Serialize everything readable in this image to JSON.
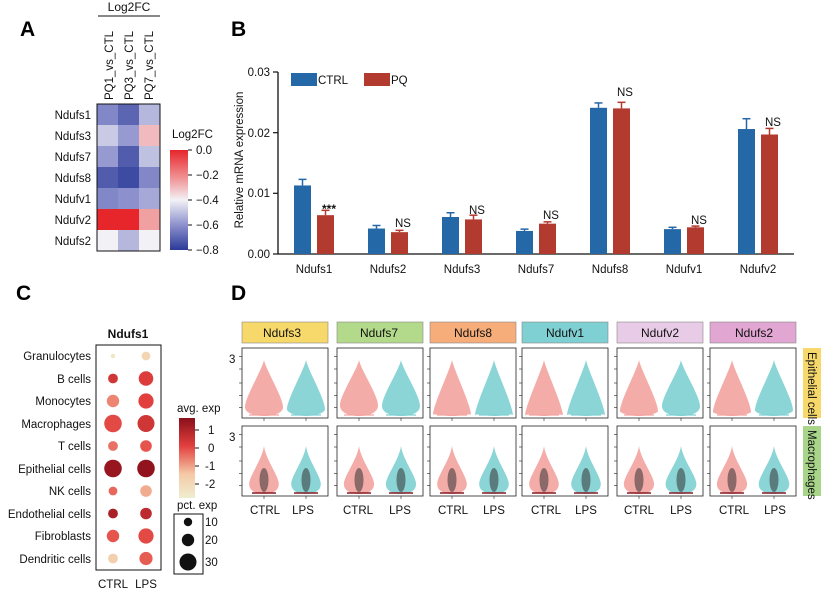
{
  "panels": {
    "a": "A",
    "b": "B",
    "c": "C",
    "d": "D"
  },
  "colors": {
    "ctrl": "#2468a8",
    "pq": "#b23a2e",
    "violin_ctrl": "#f3a3a0",
    "violin_lps": "#7fd0d3"
  },
  "chart_data": [
    {
      "id": "A",
      "type": "heatmap",
      "header": "Log2FC",
      "columns": [
        "PQ1_vs_CTL",
        "PQ3_vs_CTL",
        "PQ7_vs_CTL"
      ],
      "rows": [
        "Ndufs1",
        "Ndufs3",
        "Ndufs7",
        "Ndufs8",
        "Ndufv1",
        "Ndufv2",
        "Ndufs2"
      ],
      "values": [
        [
          -0.62,
          -0.7,
          -0.52
        ],
        [
          -0.48,
          -0.58,
          -0.3
        ],
        [
          -0.58,
          -0.72,
          -0.5
        ],
        [
          -0.72,
          -0.76,
          -0.62
        ],
        [
          -0.62,
          -0.6,
          -0.55
        ],
        [
          0.0,
          0.0,
          -0.25
        ],
        [
          -0.4,
          -0.52,
          -0.4
        ]
      ],
      "legend_title": "Log2FC",
      "legend_ticks": [
        "0.0",
        "−0.2",
        "−0.4",
        "−0.6",
        "−0.8"
      ],
      "vmin": -0.8,
      "vmax": 0.0
    },
    {
      "id": "B",
      "type": "bar",
      "categories": [
        "Ndufs1",
        "Ndufs2",
        "Ndufs3",
        "Ndufs7",
        "Ndufs8",
        "Ndufv1",
        "Ndufv2"
      ],
      "series": [
        {
          "name": "CTRL",
          "values": [
            0.0113,
            0.0042,
            0.0061,
            0.0038,
            0.0241,
            0.0041,
            0.0206
          ],
          "errors": [
            0.001,
            0.0005,
            0.0007,
            0.0003,
            0.0008,
            0.0003,
            0.0017
          ]
        },
        {
          "name": "PQ",
          "values": [
            0.0064,
            0.0036,
            0.0057,
            0.005,
            0.024,
            0.0044,
            0.0197
          ],
          "errors": [
            0.0008,
            0.0003,
            0.0007,
            0.0003,
            0.001,
            0.0002,
            0.001
          ]
        }
      ],
      "significance": [
        "***",
        "NS",
        "NS",
        "NS",
        "NS",
        "NS",
        "NS"
      ],
      "ylabel": "Relative mRNA expression",
      "yticks": [
        "0.00",
        "0.01",
        "0.02",
        "0.03"
      ],
      "ylim": [
        0,
        0.03
      ]
    },
    {
      "id": "C",
      "type": "scatter",
      "subtype": "dot-plot",
      "title": "Ndufs1",
      "cell_types": [
        "Granulocytes",
        "B cells",
        "Monocytes",
        "Macrophages",
        "T cells",
        "Epithelial cells",
        "NK cells",
        "Endothelial cells",
        "Fibroblasts",
        "Dendritic cells"
      ],
      "conditions": [
        "CTRL",
        "LPS"
      ],
      "avg_exp": [
        [
          -2.0,
          -1.5
        ],
        [
          0.6,
          0.4
        ],
        [
          -0.4,
          0.3
        ],
        [
          0.2,
          0.6
        ],
        [
          -0.2,
          0.1
        ],
        [
          1.5,
          1.6
        ],
        [
          -0.1,
          -0.8
        ],
        [
          1.2,
          0.9
        ],
        [
          0.1,
          0.2
        ],
        [
          -1.3,
          0.0
        ]
      ],
      "pct_exp": [
        [
          2,
          8
        ],
        [
          10,
          22
        ],
        [
          16,
          24
        ],
        [
          32,
          30
        ],
        [
          10,
          14
        ],
        [
          32,
          32
        ],
        [
          8,
          14
        ],
        [
          10,
          14
        ],
        [
          16,
          24
        ],
        [
          10,
          18
        ]
      ],
      "avg_legend_title": "avg. exp",
      "avg_ticks": [
        "1",
        "0",
        "-1",
        "-2"
      ],
      "pct_legend_title": "pct. exp",
      "pct_ticks": [
        "10",
        "20",
        "30"
      ]
    },
    {
      "id": "D",
      "type": "area",
      "subtype": "violin",
      "genes": [
        "Ndufs3",
        "Ndufs7",
        "Ndufs8",
        "Ndufv1",
        "Ndufv2",
        "Ndufs2"
      ],
      "gene_colors": [
        "#f7d86a",
        "#b3d98a",
        "#f6ad7a",
        "#7fd0d3",
        "#e8cbe6",
        "#e2a6d2"
      ],
      "row_labels": [
        "Epithelial cells",
        "Macrophages"
      ],
      "row_colors": [
        "#f7d86a",
        "#a8d58a"
      ],
      "conditions": [
        "CTRL",
        "LPS"
      ],
      "ytick": "3",
      "epithelial_peak": [
        [
          0.55,
          0.45
        ],
        [
          0.65,
          0.62
        ],
        [
          0.15,
          0.12
        ],
        [
          0.1,
          0.12
        ],
        [
          0.35,
          0.6
        ],
        [
          0.3,
          0.4
        ]
      ],
      "macrophage_peak": [
        [
          0.3,
          0.3
        ],
        [
          0.35,
          0.35
        ],
        [
          0.3,
          0.3
        ],
        [
          0.3,
          0.3
        ],
        [
          0.35,
          0.4
        ],
        [
          0.35,
          0.38
        ]
      ]
    }
  ]
}
